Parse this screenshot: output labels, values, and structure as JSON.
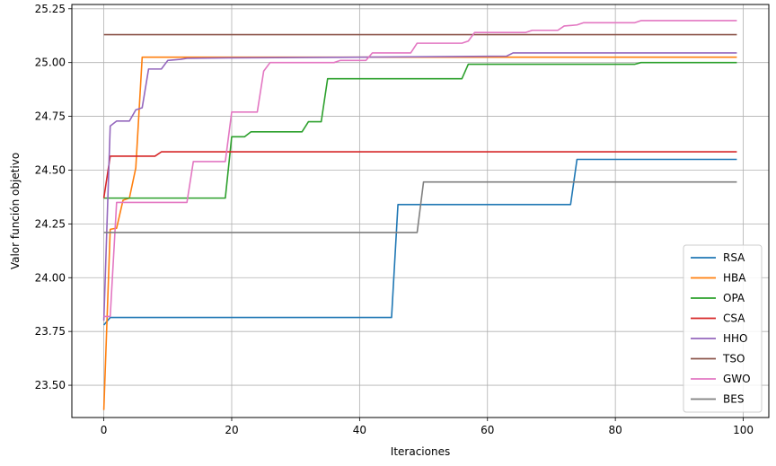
{
  "chart_data": {
    "type": "line",
    "title": "",
    "xlabel": "Iteraciones",
    "ylabel": "Valor función objetivo",
    "xlim": [
      -5,
      104
    ],
    "ylim": [
      23.35,
      25.27
    ],
    "xticks": [
      0,
      20,
      40,
      60,
      80,
      100
    ],
    "yticks": [
      23.5,
      23.75,
      24.0,
      24.25,
      24.5,
      24.75,
      25.0,
      25.25
    ],
    "xtick_labels": [
      "0",
      "20",
      "40",
      "60",
      "80",
      "100"
    ],
    "ytick_labels": [
      "23.50",
      "23.75",
      "24.00",
      "24.25",
      "24.50",
      "24.75",
      "25.00",
      "25.25"
    ],
    "grid": true,
    "legend_position": "lower-right",
    "series": [
      {
        "name": "RSA",
        "color": "#1f77b4",
        "points": [
          [
            0,
            23.78
          ],
          [
            1,
            23.815
          ],
          [
            45,
            23.815
          ],
          [
            46,
            24.34
          ],
          [
            73,
            24.34
          ],
          [
            74,
            24.55
          ],
          [
            99,
            24.55
          ]
        ]
      },
      {
        "name": "HBA",
        "color": "#ff7f0e",
        "points": [
          [
            0,
            23.385
          ],
          [
            1,
            24.225
          ],
          [
            2,
            24.23
          ],
          [
            3,
            24.36
          ],
          [
            4,
            24.37
          ],
          [
            5,
            24.51
          ],
          [
            6,
            25.025
          ],
          [
            99,
            25.025
          ]
        ]
      },
      {
        "name": "OPA",
        "color": "#2ca02c",
        "points": [
          [
            0,
            24.37
          ],
          [
            19,
            24.37
          ],
          [
            20,
            24.655
          ],
          [
            22,
            24.655
          ],
          [
            23,
            24.678
          ],
          [
            31,
            24.678
          ],
          [
            32,
            24.725
          ],
          [
            34,
            24.725
          ],
          [
            35,
            24.925
          ],
          [
            56,
            24.925
          ],
          [
            57,
            24.992
          ],
          [
            83,
            24.992
          ],
          [
            84,
            25.0
          ],
          [
            99,
            25.0
          ]
        ]
      },
      {
        "name": "CSA",
        "color": "#d62728",
        "points": [
          [
            0,
            24.37
          ],
          [
            1,
            24.565
          ],
          [
            8,
            24.565
          ],
          [
            9,
            24.585
          ],
          [
            99,
            24.585
          ]
        ]
      },
      {
        "name": "HHO",
        "color": "#9467bd",
        "points": [
          [
            0,
            23.8
          ],
          [
            1,
            24.705
          ],
          [
            2,
            24.728
          ],
          [
            4,
            24.728
          ],
          [
            5,
            24.78
          ],
          [
            6,
            24.79
          ],
          [
            7,
            24.97
          ],
          [
            9,
            24.97
          ],
          [
            10,
            25.01
          ],
          [
            12,
            25.015
          ],
          [
            13,
            25.02
          ],
          [
            20,
            25.022
          ],
          [
            40,
            25.025
          ],
          [
            63,
            25.03
          ],
          [
            64,
            25.045
          ],
          [
            99,
            25.045
          ]
        ]
      },
      {
        "name": "TSO",
        "color": "#8c564b",
        "points": [
          [
            0,
            25.13
          ],
          [
            99,
            25.13
          ]
        ]
      },
      {
        "name": "GWO",
        "color": "#e377c2",
        "points": [
          [
            0,
            23.82
          ],
          [
            1,
            23.82
          ],
          [
            2,
            24.35
          ],
          [
            13,
            24.35
          ],
          [
            14,
            24.54
          ],
          [
            19,
            24.54
          ],
          [
            20,
            24.77
          ],
          [
            24,
            24.77
          ],
          [
            25,
            24.96
          ],
          [
            26,
            25.0
          ],
          [
            36,
            25.0
          ],
          [
            37,
            25.01
          ],
          [
            41,
            25.01
          ],
          [
            42,
            25.045
          ],
          [
            48,
            25.045
          ],
          [
            49,
            25.09
          ],
          [
            56,
            25.09
          ],
          [
            57,
            25.1
          ],
          [
            58,
            25.14
          ],
          [
            66,
            25.14
          ],
          [
            67,
            25.15
          ],
          [
            71,
            25.15
          ],
          [
            72,
            25.17
          ],
          [
            74,
            25.175
          ],
          [
            75,
            25.185
          ],
          [
            83,
            25.185
          ],
          [
            84,
            25.195
          ],
          [
            99,
            25.195
          ]
        ]
      },
      {
        "name": "BES",
        "color": "#7f7f7f",
        "points": [
          [
            0,
            24.21
          ],
          [
            49,
            24.21
          ],
          [
            50,
            24.445
          ],
          [
            99,
            24.445
          ]
        ]
      }
    ]
  }
}
